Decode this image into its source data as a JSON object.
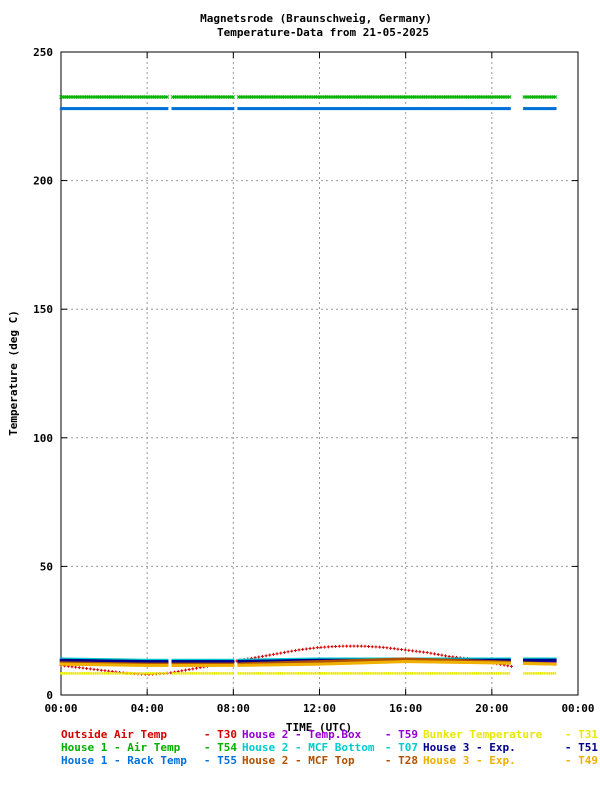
{
  "chart_data": {
    "type": "scatter",
    "title": "Magnetsrode (Braunschweig, Germany)",
    "subtitle": "Temperature-Data from 21-05-2025",
    "xlabel": "TIME (UTC)",
    "ylabel": "Temperature (deg C)",
    "xlim": [
      0,
      24
    ],
    "ylim": [
      0,
      250
    ],
    "x_ticks": [
      "00:00",
      "04:00",
      "08:00",
      "12:00",
      "16:00",
      "20:00",
      "00:00"
    ],
    "y_ticks": [
      0,
      50,
      100,
      150,
      200,
      250
    ],
    "grid": true,
    "legend_position": "bottom",
    "series": [
      {
        "name": "Outside Air Temp",
        "code": "T30",
        "color": "#d40000",
        "style": "plus",
        "x": [
          0,
          1,
          2,
          3,
          4,
          5,
          6,
          7,
          8,
          9,
          10,
          11,
          12,
          13,
          14,
          15,
          16,
          17,
          18,
          19,
          20,
          21
        ],
        "y": [
          11.5,
          10.5,
          9.5,
          8.5,
          8,
          8.5,
          10,
          11.5,
          13,
          14.5,
          16,
          17.5,
          18.5,
          19,
          19,
          18.5,
          17.5,
          16.5,
          15,
          14,
          12.5,
          11
        ]
      },
      {
        "name": "House 2 - Temp.Box",
        "code": "T59",
        "color": "#9400d3",
        "style": "dash",
        "x": [
          0,
          4,
          8,
          12,
          16,
          20,
          23
        ],
        "y": [
          13,
          12.5,
          13,
          13.5,
          14,
          13.5,
          13
        ]
      },
      {
        "name": "Bunker Temperature",
        "code": "T31",
        "color": "#e8e800",
        "style": "dots",
        "x": [
          0,
          4,
          8,
          12,
          16,
          20,
          23
        ],
        "y": [
          8.5,
          8.5,
          8.5,
          8.5,
          8.5,
          8.5,
          8.5
        ]
      },
      {
        "name": "House 1 - Air  Temp",
        "code": "T54",
        "color": "#00b000",
        "style": "cross",
        "x": [
          0,
          4,
          8,
          12,
          16,
          20,
          23
        ],
        "y": [
          232.5,
          232.5,
          232.5,
          232.5,
          232.5,
          232.5,
          232.5
        ]
      },
      {
        "name": "House 2 - MCF Bottom",
        "code": "T07",
        "color": "#00cccc",
        "style": "dash",
        "x": [
          0,
          4,
          8,
          12,
          16,
          20,
          23
        ],
        "y": [
          14,
          13.5,
          13.5,
          14,
          14,
          14,
          14
        ]
      },
      {
        "name": "House 3 - Exp.",
        "code": "T51",
        "color": "#00008b",
        "style": "dash",
        "x": [
          0,
          4,
          8,
          12,
          16,
          20,
          23
        ],
        "y": [
          13.5,
          13,
          13,
          13.5,
          13.5,
          13.5,
          13.5
        ]
      },
      {
        "name": "House 1 - Rack Temp",
        "code": "T55",
        "color": "#0070dd",
        "style": "dash",
        "x": [
          0,
          4,
          8,
          12,
          16,
          20,
          23
        ],
        "y": [
          228,
          228,
          228,
          228,
          228,
          228,
          228
        ]
      },
      {
        "name": "House 2 - MCF Top",
        "code": "T28",
        "color": "#b05000",
        "style": "dash",
        "x": [
          0,
          4,
          8,
          12,
          16,
          20,
          23
        ],
        "y": [
          12.5,
          12,
          12,
          13,
          14,
          13,
          12
        ]
      },
      {
        "name": "House 3 - Exp.",
        "code": "T49",
        "color": "#f0b000",
        "style": "dash",
        "x": [
          0,
          4,
          8,
          12,
          16,
          20,
          23
        ],
        "y": [
          12,
          11.5,
          11.5,
          12,
          13,
          12.5,
          12
        ]
      }
    ]
  }
}
